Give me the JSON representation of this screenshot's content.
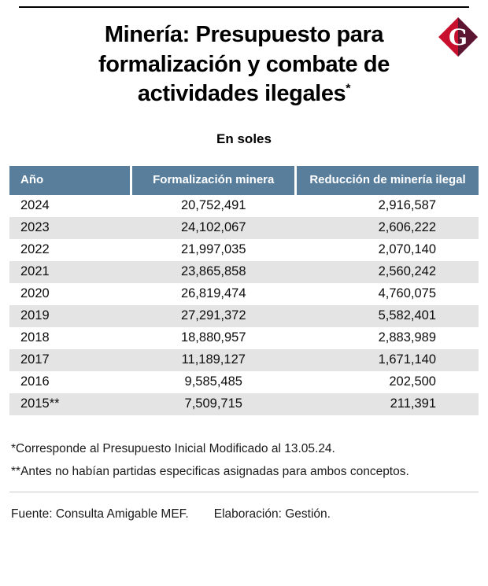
{
  "header": {
    "title": "Minería: Presupuesto para formalización y combate de actividades ilegales",
    "title_asterisk": "*",
    "subtitle": "En soles",
    "logo_letter": "G"
  },
  "colors": {
    "table_header_bg": "#587e9c",
    "alt_row_bg": "#e4e4e4",
    "logo_red": "#c8102e",
    "logo_dark": "#5c1530"
  },
  "table": {
    "columns": [
      "Año",
      "Formalización minera",
      "Reducción de minería ilegal"
    ],
    "rows": [
      [
        "2024",
        "20,752,491",
        "2,916,587"
      ],
      [
        "2023",
        "24,102,067",
        "2,606,222"
      ],
      [
        "2022",
        "21,997,035",
        "2,070,140"
      ],
      [
        "2021",
        "23,865,858",
        "2,560,242"
      ],
      [
        "2020",
        "26,819,474",
        "4,760,075"
      ],
      [
        "2019",
        "27,291,372",
        "5,582,401"
      ],
      [
        "2018",
        "18,880,957",
        "2,883,989"
      ],
      [
        "2017",
        "11,189,127",
        "1,671,140"
      ],
      [
        "2016",
        "9,585,485",
        "202,500"
      ],
      [
        "2015**",
        "7,509,715",
        "211,391"
      ]
    ]
  },
  "footnotes": [
    "*Corresponde al Presupuesto Inicial Modificado al 13.05.24.",
    "**Antes no habían partidas especificas asignadas para ambos conceptos."
  ],
  "footer": {
    "source": "Fuente: Consulta Amigable MEF.",
    "elaboration": "Elaboración: Gestión."
  },
  "chart_data": {
    "type": "table",
    "title": "Minería: Presupuesto para formalización y combate de actividades ilegales",
    "subtitle": "En soles",
    "units": "soles",
    "columns": [
      "Año",
      "Formalización minera",
      "Reducción de minería ilegal"
    ],
    "rows": [
      {
        "año": "2024",
        "formalizacion_minera": 20752491,
        "reduccion_mineria_ilegal": 2916587
      },
      {
        "año": "2023",
        "formalizacion_minera": 24102067,
        "reduccion_mineria_ilegal": 2606222
      },
      {
        "año": "2022",
        "formalizacion_minera": 21997035,
        "reduccion_mineria_ilegal": 2070140
      },
      {
        "año": "2021",
        "formalizacion_minera": 23865858,
        "reduccion_mineria_ilegal": 2560242
      },
      {
        "año": "2020",
        "formalizacion_minera": 26819474,
        "reduccion_mineria_ilegal": 4760075
      },
      {
        "año": "2019",
        "formalizacion_minera": 27291372,
        "reduccion_mineria_ilegal": 5582401
      },
      {
        "año": "2018",
        "formalizacion_minera": 18880957,
        "reduccion_mineria_ilegal": 2883989
      },
      {
        "año": "2017",
        "formalizacion_minera": 11189127,
        "reduccion_mineria_ilegal": 1671140
      },
      {
        "año": "2016",
        "formalizacion_minera": 9585485,
        "reduccion_mineria_ilegal": 202500
      },
      {
        "año": "2015**",
        "formalizacion_minera": 7509715,
        "reduccion_mineria_ilegal": 211391
      }
    ],
    "notes": [
      "*Corresponde al Presupuesto Inicial Modificado al 13.05.24.",
      "**Antes no habían partidas especificas asignadas para ambos conceptos."
    ],
    "source": "Consulta Amigable MEF",
    "elaboration": "Gestión"
  }
}
